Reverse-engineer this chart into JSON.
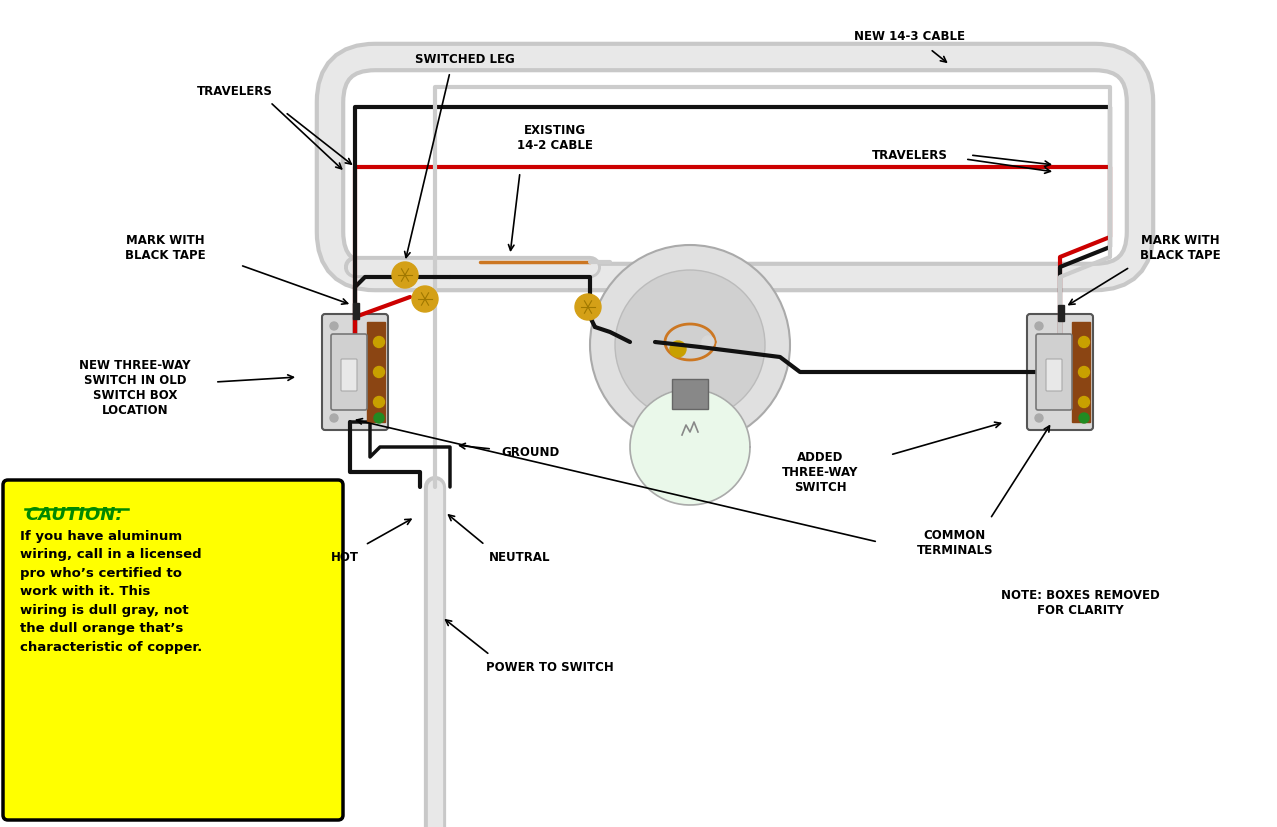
{
  "bg_color": "#ffffff",
  "caution_title": "CAUTION:",
  "caution_text": "If you have aluminum\nwiring, call in a licensed\npro who’s certified to\nwork with it. This\nwiring is dull gray, not\nthe dull orange that’s\ncharacteristic of copper.",
  "caution_bg": "#ffff00",
  "labels": {
    "travelers_left": "TRAVELERS",
    "switched_leg": "SWITCHED LEG",
    "new_cable": "NEW 14-3 CABLE",
    "mark_left": "MARK WITH\nBLACK TAPE",
    "existing_cable": "EXISTING\n14-2 CABLE",
    "travelers_right": "TRAVELERS",
    "mark_right": "MARK WITH\nBLACK TAPE",
    "new_switch_left": "NEW THREE-WAY\nSWITCH IN OLD\nSWITCH BOX\nLOCATION",
    "ground": "GROUND",
    "hot": "HOT",
    "neutral": "NEUTRAL",
    "power_to_switch": "POWER TO SWITCH",
    "added_switch": "ADDED\nTHREE-WAY\nSWITCH",
    "common_terminals": "COMMON\nTERMINALS",
    "note": "NOTE: BOXES REMOVED\nFOR CLARITY"
  },
  "colors": {
    "black": "#111111",
    "white": "#ffffff",
    "white_wire": "#cccccc",
    "red": "#cc0000",
    "brown": "#8B4513",
    "gray": "#888888",
    "dark_gray": "#555555",
    "wire_nut": "#d4a017",
    "wire_nut_dark": "#a07800",
    "green": "#228B22",
    "cable_sheath_outer": "#c8c8c8",
    "cable_sheath_inner": "#e8e8e8",
    "light_gray": "#e0e0e0",
    "mount_gray": "#d8d8d8",
    "bulb_color": "#e8f8e8",
    "orange_wire": "#cc7722"
  }
}
